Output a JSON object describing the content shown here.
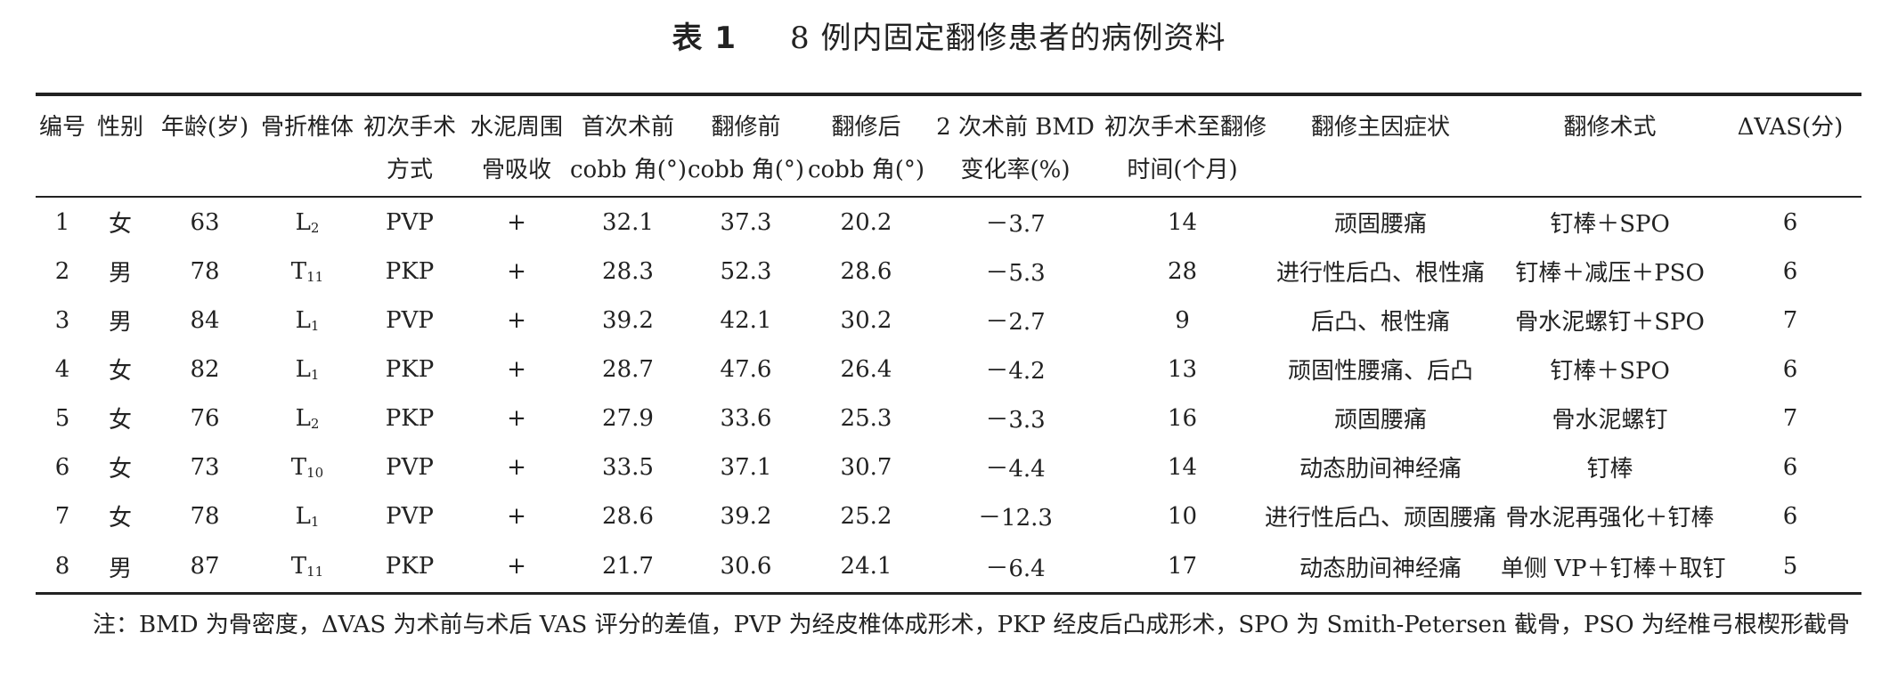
{
  "caption": {
    "tag": "表 1",
    "title": "8 例内固定翻修患者的病例资料"
  },
  "table": {
    "headers_line1": [
      "编号",
      "性别",
      "年龄(岁)",
      "骨折椎体",
      "初次手术",
      "水泥周围",
      "首次术前",
      "翻修前",
      "翻修后",
      "2 次术前 BMD",
      "初次手术至翻修",
      "翻修主因症状",
      "翻修术式",
      "ΔVAS(分)"
    ],
    "headers_line2": [
      "",
      "",
      "",
      "",
      "方式",
      "骨吸收",
      "cobb 角(°)",
      "cobb 角(°)",
      "cobb 角(°)",
      "变化率(%)",
      "时间(个月)",
      "",
      "",
      ""
    ],
    "rows": [
      {
        "id": "1",
        "sex": "女",
        "age": "63",
        "vert_letter": "L",
        "vert_num": "2",
        "surgery": "PVP",
        "resorption": "+",
        "pre_cobb": "32.1",
        "before_rev": "37.3",
        "after_rev": "20.2",
        "bmd": "－3.7",
        "months": "14",
        "symptom": "顽固腰痛",
        "method": "钉棒＋SPO",
        "vas": "6"
      },
      {
        "id": "2",
        "sex": "男",
        "age": "78",
        "vert_letter": "T",
        "vert_num": "11",
        "surgery": "PKP",
        "resorption": "+",
        "pre_cobb": "28.3",
        "before_rev": "52.3",
        "after_rev": "28.6",
        "bmd": "－5.3",
        "months": "28",
        "symptom": "进行性后凸、根性痛",
        "method": "钉棒＋减压＋PSO",
        "vas": "6"
      },
      {
        "id": "3",
        "sex": "男",
        "age": "84",
        "vert_letter": "L",
        "vert_num": "1",
        "surgery": "PVP",
        "resorption": "+",
        "pre_cobb": "39.2",
        "before_rev": "42.1",
        "after_rev": "30.2",
        "bmd": "－2.7",
        "months": "9",
        "symptom": "后凸、根性痛",
        "method": "骨水泥螺钉＋SPO",
        "vas": "7"
      },
      {
        "id": "4",
        "sex": "女",
        "age": "82",
        "vert_letter": "L",
        "vert_num": "1",
        "surgery": "PKP",
        "resorption": "+",
        "pre_cobb": "28.7",
        "before_rev": "47.6",
        "after_rev": "26.4",
        "bmd": "－4.2",
        "months": "13",
        "symptom": "顽固性腰痛、后凸",
        "method": "钉棒＋SPO",
        "vas": "6"
      },
      {
        "id": "5",
        "sex": "女",
        "age": "76",
        "vert_letter": "L",
        "vert_num": "2",
        "surgery": "PKP",
        "resorption": "+",
        "pre_cobb": "27.9",
        "before_rev": "33.6",
        "after_rev": "25.3",
        "bmd": "－3.3",
        "months": "16",
        "symptom": "顽固腰痛",
        "method": "骨水泥螺钉",
        "vas": "7"
      },
      {
        "id": "6",
        "sex": "女",
        "age": "73",
        "vert_letter": "T",
        "vert_num": "10",
        "surgery": "PVP",
        "resorption": "+",
        "pre_cobb": "33.5",
        "before_rev": "37.1",
        "after_rev": "30.7",
        "bmd": "－4.4",
        "months": "14",
        "symptom": "动态肋间神经痛",
        "method": "钉棒",
        "vas": "6"
      },
      {
        "id": "7",
        "sex": "女",
        "age": "78",
        "vert_letter": "L",
        "vert_num": "1",
        "surgery": "PVP",
        "resorption": "+",
        "pre_cobb": "28.6",
        "before_rev": "39.2",
        "after_rev": "25.2",
        "bmd": "－12.3",
        "months": "10",
        "symptom": "进行性后凸、顽固腰痛",
        "method": "骨水泥再强化＋钉棒",
        "vas": "6"
      },
      {
        "id": "8",
        "sex": "男",
        "age": "87",
        "vert_letter": "T",
        "vert_num": "11",
        "surgery": "PKP",
        "resorption": "+",
        "pre_cobb": "21.7",
        "before_rev": "30.6",
        "after_rev": "24.1",
        "bmd": "－6.4",
        "months": "17",
        "symptom": "动态肋间神经痛",
        "method": "单侧 VP＋钉棒＋取钉",
        "vas": "5"
      }
    ]
  },
  "note": "注：BMD 为骨密度，ΔVAS 为术前与术后 VAS 评分的差值，PVP 为经皮椎体成形术，PKP 经皮后凸成形术，SPO 为 Smith-Petersen 截骨，PSO 为经椎弓根楔形截骨"
}
